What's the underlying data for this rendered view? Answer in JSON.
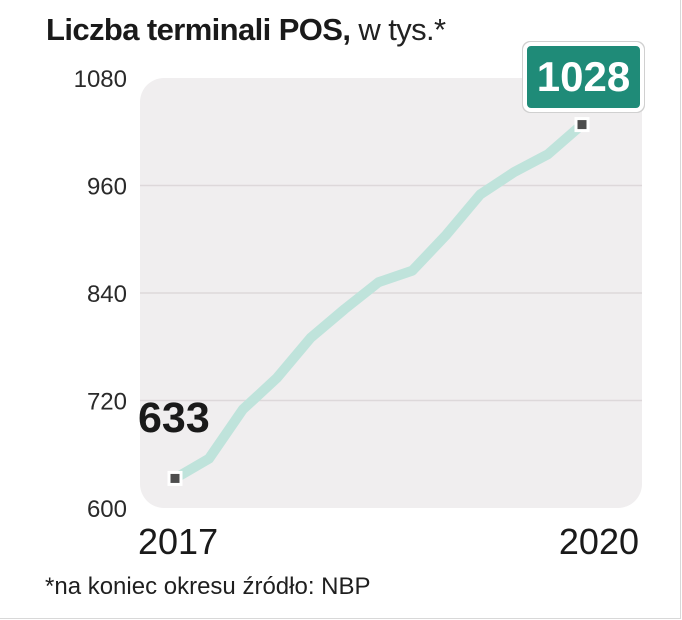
{
  "title": {
    "main": "Liczba terminali POS,",
    "sub": "w tys.*"
  },
  "footnote": "*na koniec okresu źródło: NBP",
  "chart_data": {
    "type": "line",
    "title": "Liczba terminali POS, w tys.*",
    "ylim": [
      600,
      1080
    ],
    "yticks": [
      "600",
      "720",
      "840",
      "960",
      "1080"
    ],
    "grid": true,
    "x_start_label": "2017",
    "x_end_label": "2020",
    "values": [
      633,
      655,
      710,
      745,
      790,
      822,
      852,
      865,
      905,
      950,
      975,
      995,
      1028
    ],
    "start_label": "633",
    "end_label": "1028",
    "colors": {
      "line": "#bfe3db",
      "plot_bg": "#f0eeef",
      "grid": "#ddd8da",
      "badge": "#1f8b78",
      "badge_text": "#ffffff",
      "marker": "#4d4d4d"
    }
  }
}
